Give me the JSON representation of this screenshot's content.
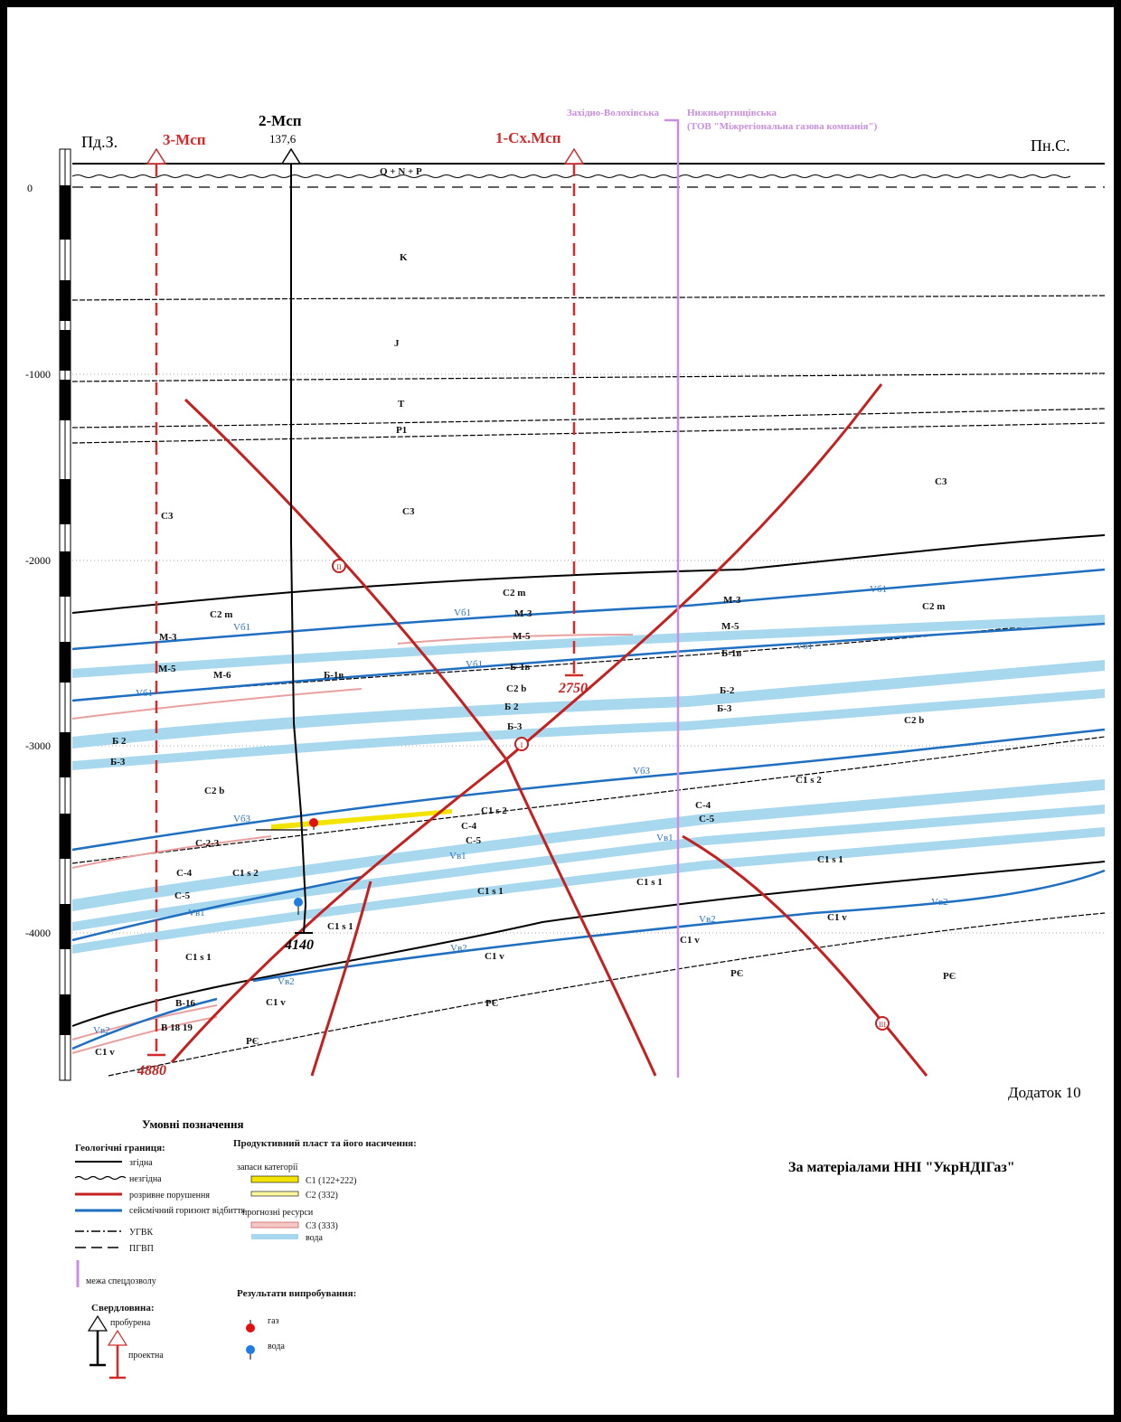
{
  "orientation": {
    "left": "Пд.З.",
    "right": "Пн.С."
  },
  "depth_scale": {
    "ticks": [
      "0",
      "-1000",
      "-2000",
      "-3000",
      "-4000"
    ]
  },
  "wells": [
    {
      "name": "3-Мсп",
      "depth": "4880",
      "color": "#d42a2a",
      "status": "проектна"
    },
    {
      "name": "2-Мсп",
      "altitude": "137,6",
      "depth": "4140",
      "color": "#000000",
      "status": "пробурена"
    },
    {
      "name": "1-Сх.Мсп",
      "depth": "2750",
      "color": "#d42a2a",
      "status": "проектна"
    }
  ],
  "license_boundary": {
    "left_name": "Західно-Волохівська",
    "right_name": "Нижньортищівська",
    "company": "(ТОВ \"Міжрегіональна газова компанія\")",
    "color": "#c98ee0"
  },
  "strata_labels": {
    "quaternary": "Q + N + P",
    "k": "K",
    "j": "J",
    "t": "T",
    "p1": "P1",
    "c3_left": "C3",
    "c3_mid": "C3",
    "c3_right": "C3",
    "c2m_left": "C2 m",
    "c2m_mid": "C2 m",
    "c2m_right": "C2 m",
    "c2b_mid": "C2 b",
    "c2b_left": "C2 b",
    "c2b_right": "C2 b",
    "c1s2_mid": "C1 s 2",
    "c1s2_left": "C1 s 2",
    "c1s2_right": "C1 s 2",
    "c1s1_a": "C1 s 1",
    "c1s1_b": "C1 s 1",
    "c1s1_c": "C1 s 1",
    "c1s1_d": "C1 s 1",
    "c1s1_e": "C1 s 1",
    "c1v_a": "C1 v",
    "c1v_b": "C1 v",
    "c1v_c": "C1 v",
    "c1v_d": "C1 v",
    "c1v_e": "C1 v",
    "pe_a": "PЄ",
    "pe_b": "PЄ",
    "pe_c": "PЄ",
    "pe_d": "PЄ"
  },
  "horizons": {
    "m3_l": "М-3",
    "m5_l": "М-5",
    "m6_l": "М-6",
    "b1v_l": "Б-1в",
    "m3_m": "М-3",
    "m5_m": "М-5",
    "b1v_m": "Б-1в",
    "b2_m": "Б 2",
    "b3_m": "Б-3",
    "m3_r": "М-3",
    "m5_r": "М-5",
    "b1v_r": "Б-1в",
    "b2_r": "Б-2",
    "b3_r": "Б-3",
    "b2_l": "Б 2",
    "b3_l": "Б-3",
    "c23_l": "С-2-3",
    "c4_l": "С-4",
    "c5_l": "С-5",
    "c4_m": "С-4",
    "c5_m": "С-5",
    "c4_r": "С-4",
    "c5_r": "С-5",
    "v16_l": "В-16",
    "v1819_l": "В 18 19"
  },
  "seismic_labels": {
    "vb1_a": "Vб1",
    "vb1_b": "Vб1",
    "vb1_c": "Vб1",
    "vb1_d": "Vб1",
    "vb1_e": "Vб1",
    "vb1_f": "Vб1",
    "vb3_a": "Vб3",
    "vb3_b": "Vб3",
    "vv1_a": "Vв1",
    "vv1_b": "Vв1",
    "vv1_c": "Vв1",
    "vv2_a": "Vв2",
    "vv2_b": "Vв2",
    "vv2_c": "Vв2",
    "vv2_d": "Vв2",
    "vv2_e": "Vв2"
  },
  "faults": {
    "f1": "I",
    "f2": "II",
    "f3": "III"
  },
  "appendix": "Додаток 10",
  "source": "За матеріалами ННІ \"УкрНДІГаз\"",
  "legend": {
    "title": "Умовні позначення",
    "geo_title": "Геологічні границя:",
    "concordant": "згідна",
    "discordant": "незгідна",
    "fault": "розривне порушення",
    "seismic": "сейсмічний горизонт відбиття",
    "ugvk": "УГВК",
    "pgvp": "ПГВП",
    "boundary": "межа спецдозволу",
    "product_title": "Продуктивний пласт та його насичення:",
    "reserves": "запаси категорії",
    "c1_cat": "С1 (122+222)",
    "c2_cat": "С2 (332)",
    "forecast": "прогнозні ресурси",
    "c3_cat": "С3 (333)",
    "water": "вода",
    "well_title": "Свердловина:",
    "drilled": "пробурена",
    "projected": "проектна",
    "test_title": "Результати випробування:",
    "gas": "газ",
    "water_test": "вода"
  }
}
